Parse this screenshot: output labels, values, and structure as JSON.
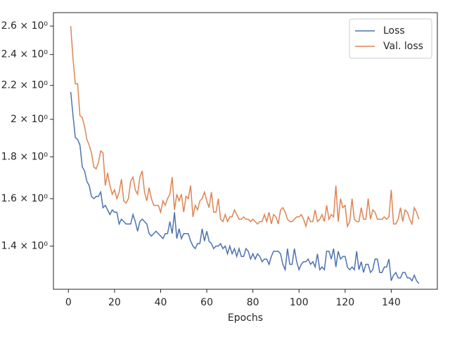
{
  "chart_data": {
    "type": "line",
    "x_label": "Epochs",
    "log_y": true,
    "legend": "upper right",
    "x": [
      1,
      2,
      3,
      4,
      5,
      6,
      7,
      8,
      9,
      10,
      11,
      12,
      13,
      14,
      15,
      16,
      17,
      18,
      19,
      20,
      21,
      22,
      23,
      24,
      25,
      26,
      27,
      28,
      29,
      30,
      31,
      32,
      33,
      34,
      35,
      36,
      37,
      38,
      39,
      40,
      41,
      42,
      43,
      44,
      45,
      46,
      47,
      48,
      49,
      50,
      51,
      52,
      53,
      54,
      55,
      56,
      57,
      58,
      59,
      60,
      61,
      62,
      63,
      64,
      65,
      66,
      67,
      68,
      69,
      70,
      71,
      72,
      73,
      74,
      75,
      76,
      77,
      78,
      79,
      80,
      81,
      82,
      83,
      84,
      85,
      86,
      87,
      88,
      89,
      90,
      91,
      92,
      93,
      94,
      95,
      96,
      97,
      98,
      99,
      100,
      101,
      102,
      103,
      104,
      105,
      106,
      107,
      108,
      109,
      110,
      111,
      112,
      113,
      114,
      115,
      116,
      117,
      118,
      119,
      120,
      121,
      122,
      123,
      124,
      125,
      126,
      127,
      128,
      129,
      130,
      131,
      132,
      133,
      134,
      135,
      136,
      137,
      138,
      139,
      140,
      141,
      142,
      143,
      144,
      145,
      146,
      147,
      148,
      149,
      150,
      151,
      152
    ],
    "series": [
      {
        "name": "Loss",
        "color": "#4c72b0",
        "values": [
          2.16,
          2.02,
          1.9,
          1.89,
          1.86,
          1.75,
          1.73,
          1.68,
          1.66,
          1.61,
          1.6,
          1.61,
          1.61,
          1.63,
          1.56,
          1.57,
          1.55,
          1.53,
          1.55,
          1.54,
          1.54,
          1.49,
          1.51,
          1.5,
          1.49,
          1.49,
          1.49,
          1.53,
          1.5,
          1.46,
          1.5,
          1.51,
          1.5,
          1.49,
          1.45,
          1.44,
          1.45,
          1.46,
          1.45,
          1.44,
          1.43,
          1.45,
          1.45,
          1.5,
          1.45,
          1.54,
          1.43,
          1.47,
          1.43,
          1.45,
          1.45,
          1.45,
          1.42,
          1.4,
          1.39,
          1.41,
          1.41,
          1.47,
          1.42,
          1.46,
          1.42,
          1.41,
          1.39,
          1.4,
          1.4,
          1.41,
          1.39,
          1.4,
          1.37,
          1.4,
          1.37,
          1.39,
          1.36,
          1.39,
          1.36,
          1.36,
          1.39,
          1.38,
          1.35,
          1.37,
          1.35,
          1.37,
          1.36,
          1.34,
          1.35,
          1.35,
          1.33,
          1.36,
          1.38,
          1.38,
          1.38,
          1.37,
          1.33,
          1.31,
          1.39,
          1.33,
          1.33,
          1.39,
          1.34,
          1.31,
          1.33,
          1.34,
          1.34,
          1.35,
          1.33,
          1.34,
          1.32,
          1.37,
          1.31,
          1.32,
          1.31,
          1.38,
          1.38,
          1.35,
          1.39,
          1.32,
          1.38,
          1.35,
          1.36,
          1.36,
          1.32,
          1.31,
          1.32,
          1.31,
          1.38,
          1.31,
          1.34,
          1.3,
          1.33,
          1.33,
          1.3,
          1.31,
          1.35,
          1.35,
          1.3,
          1.3,
          1.32,
          1.32,
          1.35,
          1.27,
          1.29,
          1.3,
          1.28,
          1.28,
          1.3,
          1.3,
          1.28,
          1.28,
          1.27,
          1.29,
          1.27,
          1.26
        ]
      },
      {
        "name": "Val. loss",
        "color": "#dd8452",
        "values": [
          2.6,
          2.37,
          2.21,
          2.21,
          2.02,
          2.01,
          1.96,
          1.89,
          1.86,
          1.82,
          1.75,
          1.74,
          1.77,
          1.83,
          1.82,
          1.66,
          1.72,
          1.66,
          1.62,
          1.64,
          1.6,
          1.63,
          1.69,
          1.59,
          1.58,
          1.6,
          1.68,
          1.7,
          1.64,
          1.62,
          1.7,
          1.73,
          1.63,
          1.59,
          1.65,
          1.6,
          1.57,
          1.57,
          1.57,
          1.54,
          1.59,
          1.57,
          1.6,
          1.62,
          1.7,
          1.55,
          1.62,
          1.59,
          1.62,
          1.54,
          1.61,
          1.6,
          1.66,
          1.52,
          1.57,
          1.55,
          1.59,
          1.6,
          1.63,
          1.59,
          1.56,
          1.63,
          1.54,
          1.54,
          1.6,
          1.51,
          1.5,
          1.53,
          1.5,
          1.52,
          1.52,
          1.55,
          1.53,
          1.51,
          1.51,
          1.52,
          1.51,
          1.51,
          1.5,
          1.51,
          1.5,
          1.49,
          1.5,
          1.5,
          1.53,
          1.5,
          1.54,
          1.49,
          1.53,
          1.52,
          1.49,
          1.55,
          1.56,
          1.54,
          1.51,
          1.5,
          1.5,
          1.51,
          1.52,
          1.52,
          1.53,
          1.51,
          1.48,
          1.52,
          1.5,
          1.5,
          1.55,
          1.5,
          1.51,
          1.53,
          1.5,
          1.57,
          1.51,
          1.53,
          1.52,
          1.66,
          1.5,
          1.6,
          1.56,
          1.57,
          1.48,
          1.5,
          1.6,
          1.51,
          1.5,
          1.5,
          1.56,
          1.51,
          1.51,
          1.6,
          1.51,
          1.55,
          1.54,
          1.51,
          1.51,
          1.51,
          1.52,
          1.51,
          1.52,
          1.64,
          1.49,
          1.49,
          1.51,
          1.56,
          1.5,
          1.55,
          1.54,
          1.51,
          1.49,
          1.56,
          1.54,
          1.51
        ]
      }
    ],
    "xlim": [
      -6.5,
      160
    ],
    "xticks": [
      0,
      20,
      40,
      60,
      80,
      100,
      120,
      140
    ],
    "ylim": [
      1.24,
      2.7
    ],
    "yticks": [
      {
        "value": 1.4,
        "label": "1.4 × 10⁰"
      },
      {
        "value": 1.6,
        "label": "1.6 × 10⁰"
      },
      {
        "value": 1.8,
        "label": "1.8 × 10⁰"
      },
      {
        "value": 2,
        "label": "2 × 10⁰"
      },
      {
        "value": 2.2,
        "label": "2.2 × 10⁰"
      },
      {
        "value": 2.4,
        "label": "2.4 × 10⁰"
      },
      {
        "value": 2.6,
        "label": "2.6 × 10⁰"
      }
    ]
  }
}
